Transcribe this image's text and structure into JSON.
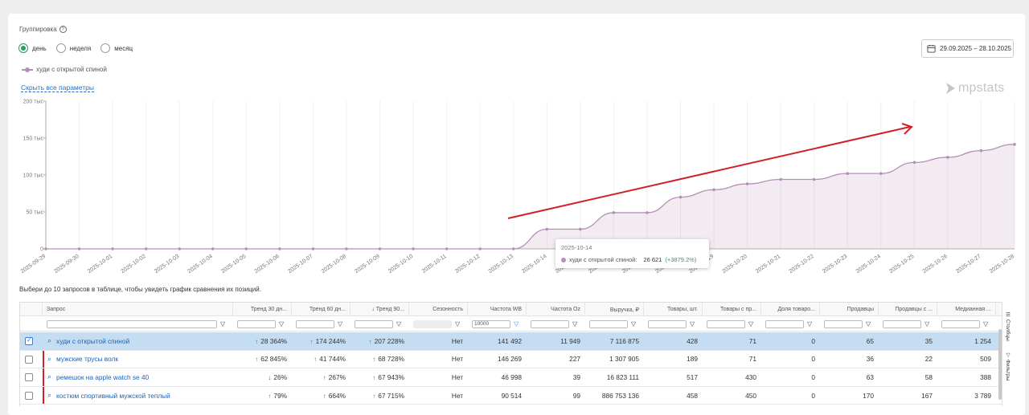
{
  "grouping": {
    "label": "Группировка",
    "help_icon": "question-circle-icon",
    "options": [
      {
        "label": "день",
        "selected": true
      },
      {
        "label": "неделя",
        "selected": false
      },
      {
        "label": "месяц",
        "selected": false
      }
    ]
  },
  "legend": {
    "series_name": "худи с открытой спиной",
    "color": "#b58fb8"
  },
  "hide_params_link": "Скрыть все параметры",
  "date_range": {
    "icon": "calendar-icon",
    "value": "29.09.2025 – 28.10.2025"
  },
  "logo_text": "mpstats",
  "chart_data": {
    "type": "area",
    "categories": [
      "2025-09-29",
      "2025-09-30",
      "2025-10-01",
      "2025-10-02",
      "2025-10-03",
      "2025-10-04",
      "2025-10-05",
      "2025-10-06",
      "2025-10-07",
      "2025-10-08",
      "2025-10-09",
      "2025-10-10",
      "2025-10-11",
      "2025-10-12",
      "2025-10-13",
      "2025-10-14",
      "2025-10-15",
      "2025-10-16",
      "2025-10-17",
      "2025-10-18",
      "2025-10-19",
      "2025-10-20",
      "2025-10-21",
      "2025-10-22",
      "2025-10-23",
      "2025-10-24",
      "2025-10-25",
      "2025-10-26",
      "2025-10-27",
      "2025-10-28"
    ],
    "series": [
      {
        "name": "худи с открытой спиной",
        "color": "#b58fb8",
        "values": [
          0,
          0,
          0,
          0,
          0,
          0,
          0,
          0,
          0,
          0,
          0,
          0,
          0,
          0,
          0,
          26621,
          26621,
          49000,
          49000,
          70000,
          80000,
          88000,
          94000,
          94000,
          102000,
          102000,
          117000,
          124000,
          133000,
          141500
        ]
      }
    ],
    "y_ticks": [
      "0",
      "50 тыс",
      "100 тыс",
      "150 тыс",
      "200 тыс"
    ],
    "ylim": [
      0,
      200000
    ],
    "grid": true,
    "annotation": {
      "type": "arrow",
      "color": "#d0202a"
    },
    "tooltip": {
      "date": "2025-10-14",
      "series": "худи с открытой спиной:",
      "value": "26 621",
      "change": "(+3879.2%)"
    }
  },
  "hint": "Выбери до 10 запросов в таблице, чтобы увидеть график сравнения их позиций.",
  "table": {
    "headers": [
      "Запрос",
      "Тренд 30 дн...",
      "Тренд 60 дн...",
      "↓ Тренд 90...",
      "Сезонность",
      "Частота WB",
      "Частота Oz",
      "Выручка, ₽",
      "Товары, шт.",
      "Товары с пр...",
      "Доля товаро...",
      "Продавцы",
      "Продавцы с ...",
      "Медианная ..."
    ],
    "filter_wb_value": "10000",
    "rows": [
      {
        "query": "худи с открытой спиной",
        "selected": true,
        "t30": "28 364%",
        "t30_dir": "up",
        "t60": "174 244%",
        "t60_dir": "up",
        "t90": "207 228%",
        "t90_dir": "up",
        "season": "Нет",
        "wb": "141 492",
        "oz": "11 949",
        "revenue": "7 116 875",
        "goods": "428",
        "goods_sales": "71",
        "share": "0",
        "sellers": "65",
        "sellers_sales": "35",
        "median": "1 254"
      },
      {
        "query": "мужские трусы волк",
        "selected": false,
        "t30": "62 845%",
        "t30_dir": "up",
        "t60": "41 744%",
        "t60_dir": "up",
        "t90": "68 728%",
        "t90_dir": "up",
        "season": "Нет",
        "wb": "146 269",
        "oz": "227",
        "revenue": "1 307 905",
        "goods": "189",
        "goods_sales": "71",
        "share": "0",
        "sellers": "36",
        "sellers_sales": "22",
        "median": "509"
      },
      {
        "query": "ремешок на apple watch se 40",
        "selected": false,
        "t30": "26%",
        "t30_dir": "down",
        "t60": "267%",
        "t60_dir": "up",
        "t90": "67 943%",
        "t90_dir": "up",
        "season": "Нет",
        "wb": "46 998",
        "oz": "39",
        "revenue": "16 823 111",
        "goods": "517",
        "goods_sales": "430",
        "share": "0",
        "sellers": "63",
        "sellers_sales": "58",
        "median": "388"
      },
      {
        "query": "костюм спортивный мужской теплый",
        "selected": false,
        "t30": "79%",
        "t30_dir": "up",
        "t60": "664%",
        "t60_dir": "up",
        "t90": "67 715%",
        "t90_dir": "up",
        "season": "Нет",
        "wb": "90 514",
        "oz": "99",
        "revenue": "886 753 136",
        "goods": "458",
        "goods_sales": "450",
        "share": "0",
        "sellers": "170",
        "sellers_sales": "167",
        "median": "3 789"
      }
    ]
  },
  "side_tabs": [
    "Столбцы",
    "Фильтры"
  ]
}
